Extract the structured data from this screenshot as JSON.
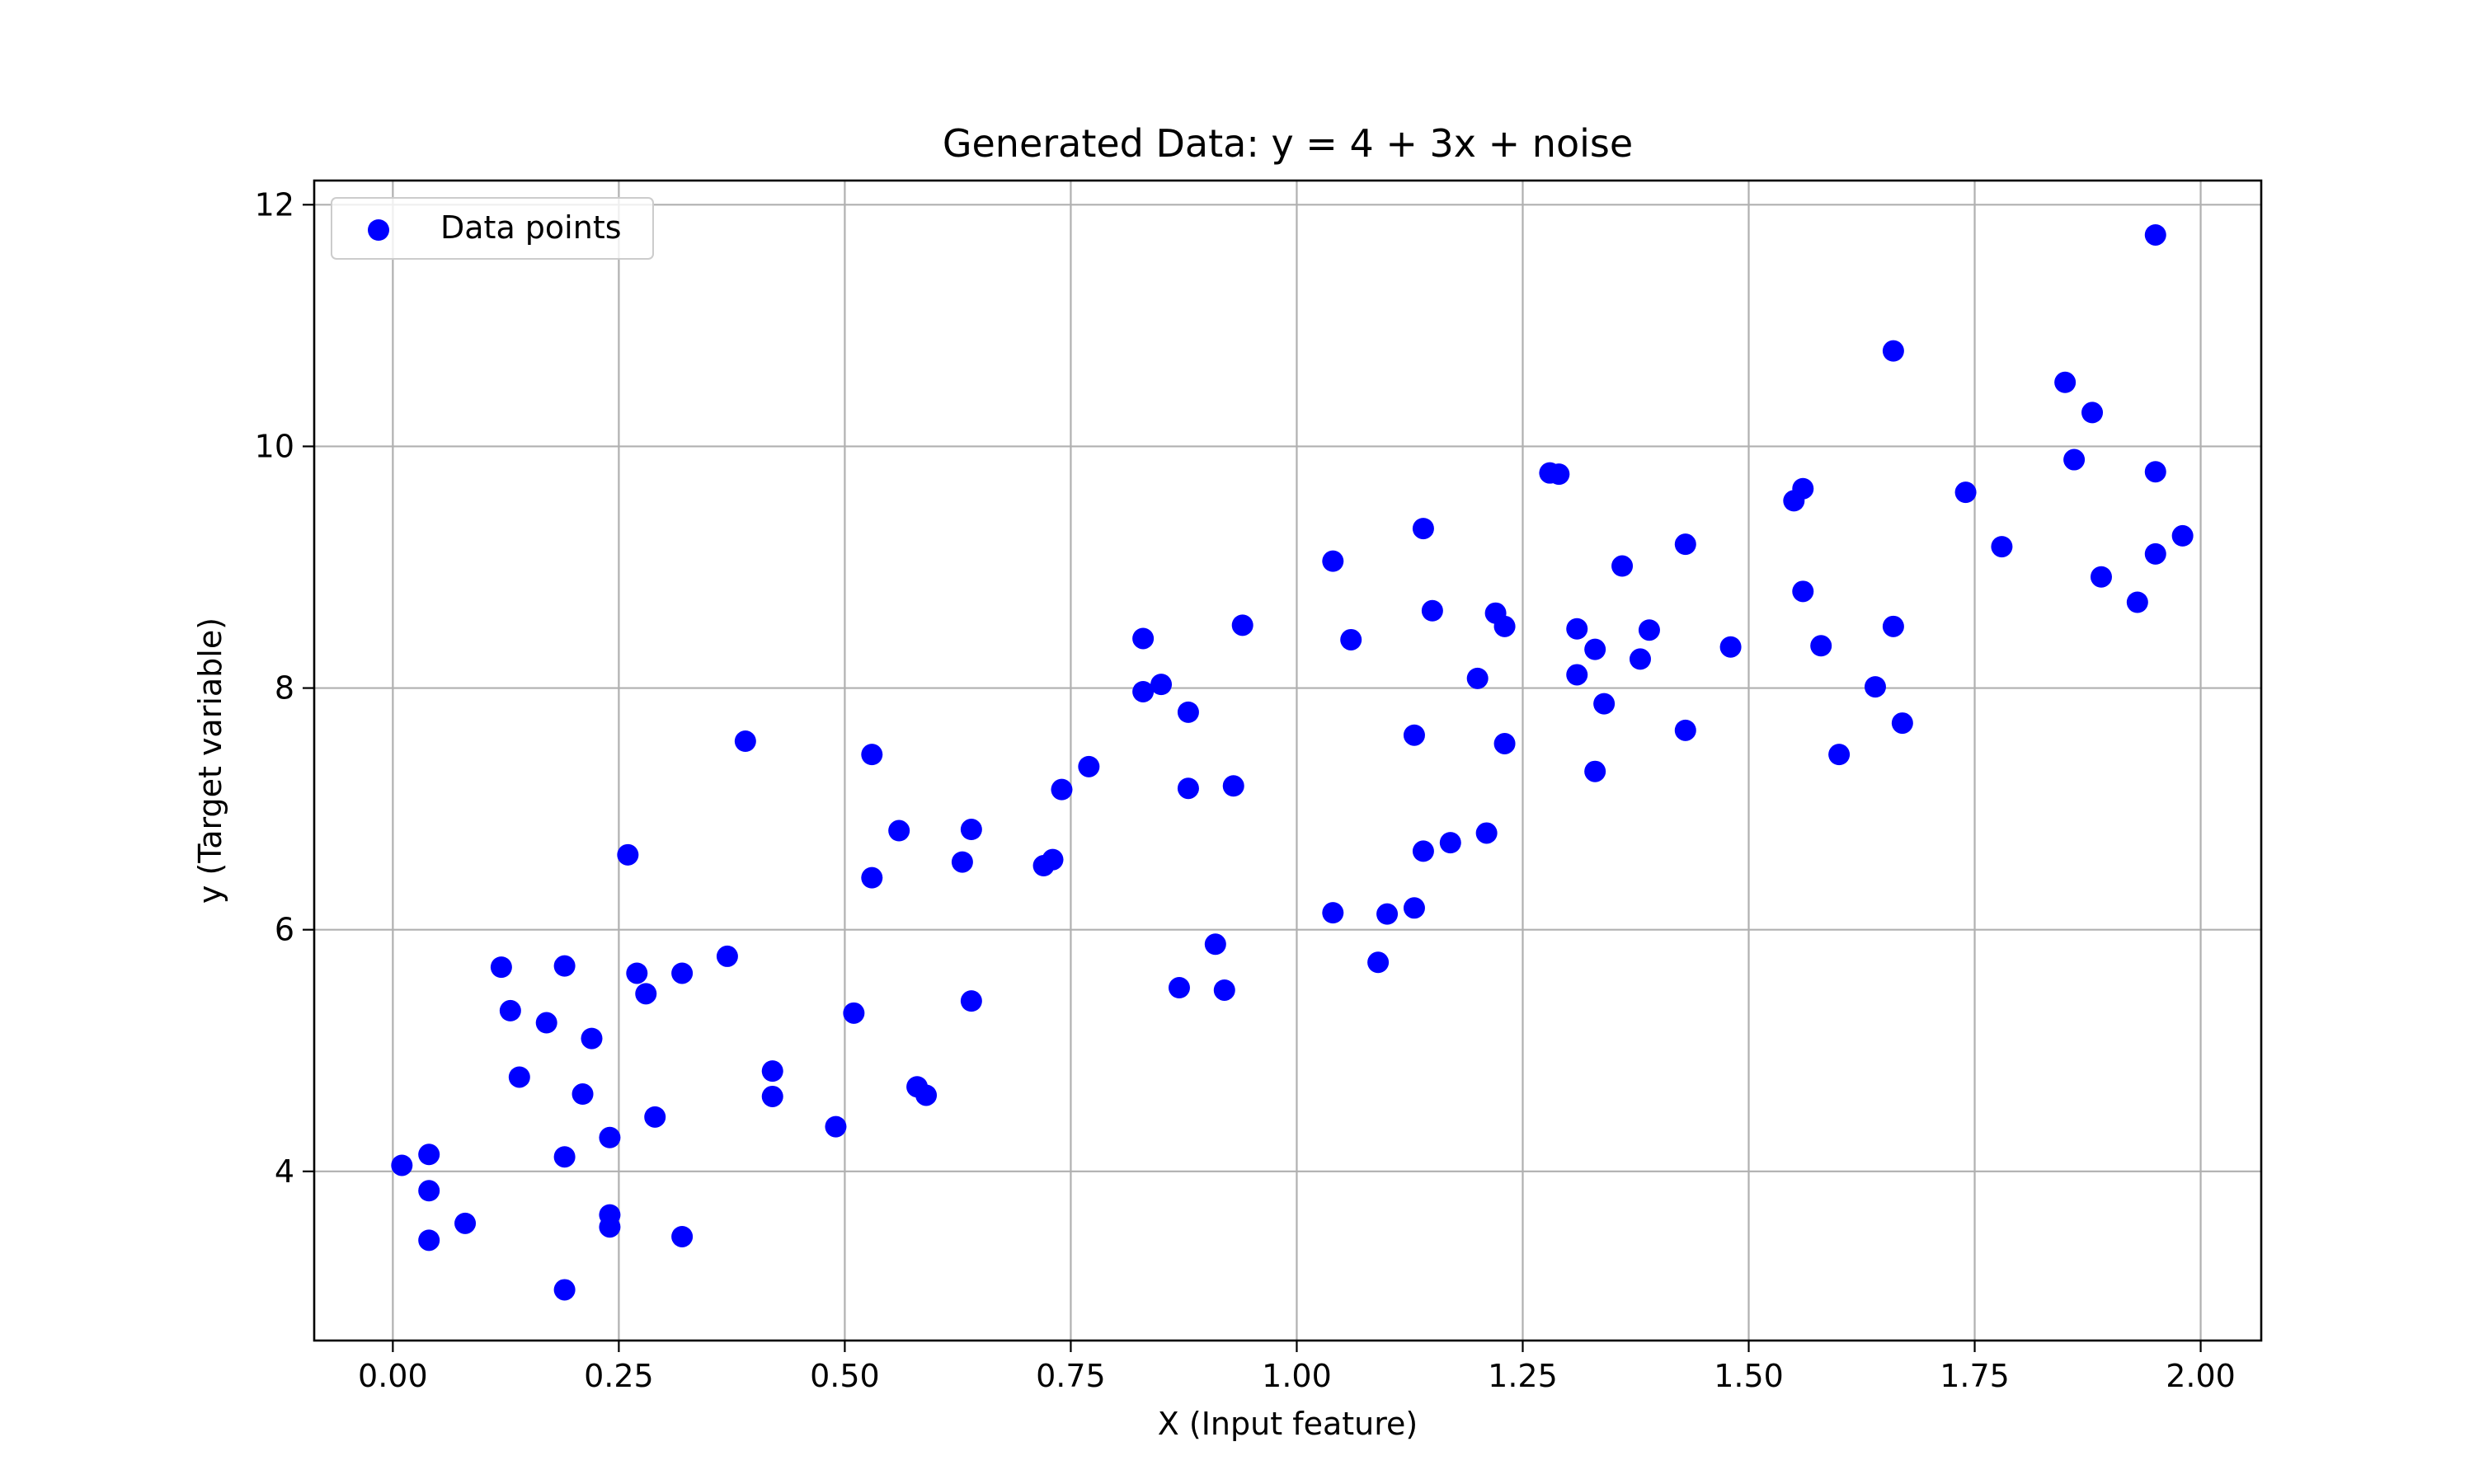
{
  "chart_data": {
    "type": "scatter",
    "title": "Generated Data: y = 4 + 3x + noise",
    "xlabel": "X (Input feature)",
    "ylabel": "y (Target variable)",
    "xlim": [
      -0.087,
      2.067
    ],
    "ylim": [
      2.6,
      12.2
    ],
    "x_ticks": [
      0.0,
      0.25,
      0.5,
      0.75,
      1.0,
      1.25,
      1.5,
      1.75,
      2.0
    ],
    "x_tick_labels": [
      "0.00",
      "0.25",
      "0.50",
      "0.75",
      "1.00",
      "1.25",
      "1.50",
      "1.75",
      "2.00"
    ],
    "y_ticks": [
      4,
      6,
      8,
      10,
      12
    ],
    "y_tick_labels": [
      "4",
      "6",
      "8",
      "10",
      "12"
    ],
    "grid": true,
    "legend": {
      "position": "top-left",
      "entries": [
        "Data points"
      ]
    },
    "series": [
      {
        "name": "Data points",
        "color": "#0000ff",
        "points": [
          [
            0.01,
            4.05
          ],
          [
            0.04,
            4.14
          ],
          [
            0.04,
            3.84
          ],
          [
            0.04,
            3.43
          ],
          [
            0.08,
            3.57
          ],
          [
            0.12,
            5.69
          ],
          [
            0.13,
            5.33
          ],
          [
            0.14,
            4.78
          ],
          [
            0.17,
            5.23
          ],
          [
            0.19,
            3.02
          ],
          [
            0.19,
            4.12
          ],
          [
            0.19,
            5.7
          ],
          [
            0.21,
            4.64
          ],
          [
            0.22,
            5.1
          ],
          [
            0.24,
            4.28
          ],
          [
            0.24,
            3.64
          ],
          [
            0.24,
            3.54
          ],
          [
            0.26,
            6.62
          ],
          [
            0.27,
            5.64
          ],
          [
            0.28,
            5.47
          ],
          [
            0.29,
            4.45
          ],
          [
            0.32,
            3.46
          ],
          [
            0.32,
            5.64
          ],
          [
            0.37,
            5.78
          ],
          [
            0.39,
            7.56
          ],
          [
            0.42,
            4.83
          ],
          [
            0.42,
            4.62
          ],
          [
            0.49,
            4.37
          ],
          [
            0.51,
            5.31
          ],
          [
            0.53,
            7.45
          ],
          [
            0.53,
            6.43
          ],
          [
            0.56,
            6.82
          ],
          [
            0.58,
            4.7
          ],
          [
            0.59,
            4.63
          ],
          [
            0.63,
            6.56
          ],
          [
            0.64,
            6.83
          ],
          [
            0.64,
            5.41
          ],
          [
            0.72,
            6.53
          ],
          [
            0.73,
            6.58
          ],
          [
            0.74,
            7.16
          ],
          [
            0.77,
            7.35
          ],
          [
            0.83,
            7.97
          ],
          [
            0.83,
            8.41
          ],
          [
            0.85,
            8.03
          ],
          [
            0.87,
            5.52
          ],
          [
            0.88,
            7.8
          ],
          [
            0.88,
            7.17
          ],
          [
            0.91,
            5.88
          ],
          [
            0.92,
            5.5
          ],
          [
            0.93,
            7.19
          ],
          [
            0.94,
            8.52
          ],
          [
            1.04,
            6.14
          ],
          [
            1.04,
            9.05
          ],
          [
            1.06,
            8.4
          ],
          [
            1.09,
            5.73
          ],
          [
            1.1,
            6.13
          ],
          [
            1.13,
            6.18
          ],
          [
            1.13,
            7.61
          ],
          [
            1.14,
            9.32
          ],
          [
            1.14,
            6.65
          ],
          [
            1.15,
            8.64
          ],
          [
            1.17,
            6.72
          ],
          [
            1.2,
            8.08
          ],
          [
            1.21,
            6.8
          ],
          [
            1.22,
            8.62
          ],
          [
            1.23,
            8.51
          ],
          [
            1.23,
            7.54
          ],
          [
            1.28,
            9.78
          ],
          [
            1.29,
            9.77
          ],
          [
            1.31,
            8.49
          ],
          [
            1.31,
            8.11
          ],
          [
            1.33,
            7.31
          ],
          [
            1.33,
            8.32
          ],
          [
            1.34,
            7.87
          ],
          [
            1.36,
            9.01
          ],
          [
            1.38,
            8.24
          ],
          [
            1.39,
            8.48
          ],
          [
            1.43,
            9.19
          ],
          [
            1.43,
            7.65
          ],
          [
            1.48,
            8.34
          ],
          [
            1.55,
            9.55
          ],
          [
            1.56,
            9.65
          ],
          [
            1.56,
            8.8
          ],
          [
            1.58,
            8.35
          ],
          [
            1.6,
            7.45
          ],
          [
            1.64,
            8.01
          ],
          [
            1.66,
            8.51
          ],
          [
            1.66,
            10.79
          ],
          [
            1.67,
            7.71
          ],
          [
            1.74,
            9.62
          ],
          [
            1.78,
            9.17
          ],
          [
            1.85,
            10.53
          ],
          [
            1.86,
            9.89
          ],
          [
            1.88,
            10.28
          ],
          [
            1.89,
            8.92
          ],
          [
            1.93,
            8.71
          ],
          [
            1.95,
            11.75
          ],
          [
            1.95,
            9.79
          ],
          [
            1.95,
            9.11
          ],
          [
            1.98,
            9.26
          ]
        ]
      }
    ]
  }
}
